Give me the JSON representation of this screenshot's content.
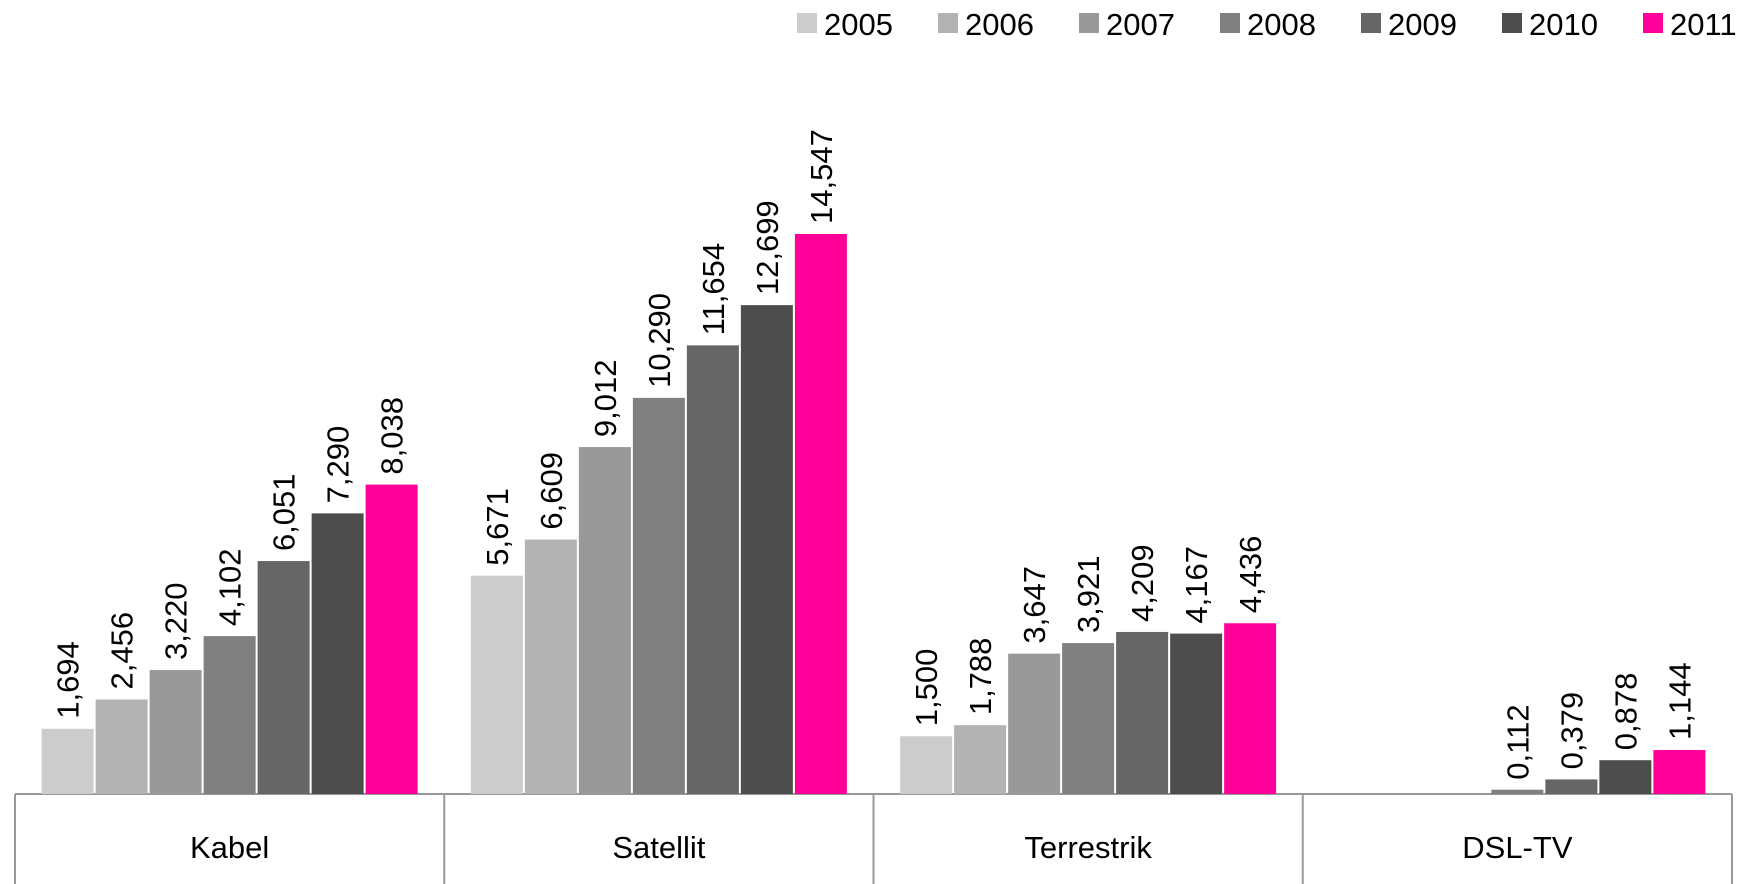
{
  "chart_data": {
    "type": "bar",
    "categories": [
      "Kabel",
      "Satellit",
      "Terrestrik",
      "DSL-TV"
    ],
    "series": [
      {
        "name": "2005",
        "color": "#cccccc",
        "values": [
          1.694,
          5.671,
          1.5,
          null
        ],
        "value_labels": [
          "1,694",
          "5,671",
          "1,500",
          null
        ]
      },
      {
        "name": "2006",
        "color": "#b3b3b3",
        "values": [
          2.456,
          6.609,
          1.788,
          null
        ],
        "value_labels": [
          "2,456",
          "6,609",
          "1,788",
          null
        ]
      },
      {
        "name": "2007",
        "color": "#999999",
        "values": [
          3.22,
          9.012,
          3.647,
          null
        ],
        "value_labels": [
          "3,220",
          "9,012",
          "3,647",
          null
        ]
      },
      {
        "name": "2008",
        "color": "#808080",
        "values": [
          4.102,
          10.29,
          3.921,
          0.112
        ],
        "value_labels": [
          "4,102",
          "10,290",
          "3,921",
          "0,112"
        ]
      },
      {
        "name": "2009",
        "color": "#666666",
        "values": [
          6.051,
          11.654,
          4.209,
          0.379
        ],
        "value_labels": [
          "6,051",
          "11,654",
          "4,209",
          "0,379"
        ]
      },
      {
        "name": "2010",
        "color": "#4d4d4d",
        "values": [
          7.29,
          12.699,
          4.167,
          0.878
        ],
        "value_labels": [
          "7,290",
          "12,699",
          "4,167",
          "0,878"
        ]
      },
      {
        "name": "2011",
        "color": "#ff0099",
        "values": [
          8.038,
          14.547,
          4.436,
          1.144
        ],
        "value_labels": [
          "8,038",
          "14,547",
          "4,436",
          "1,144"
        ]
      }
    ],
    "legend": "top-right"
  }
}
